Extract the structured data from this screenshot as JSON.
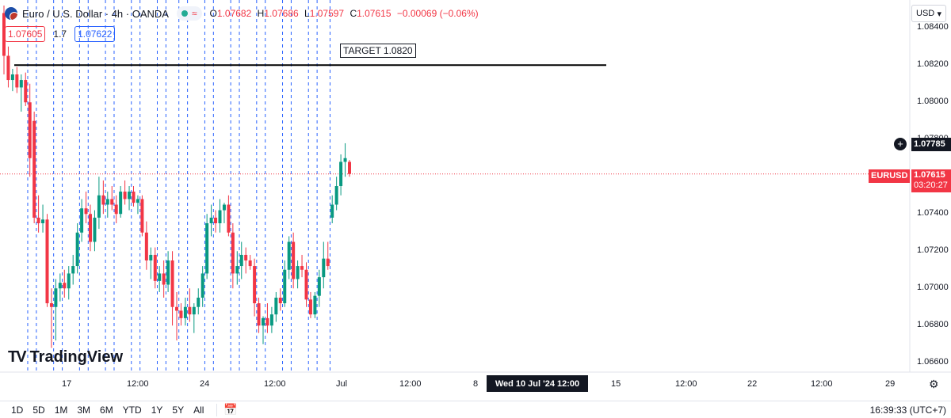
{
  "header": {
    "symbol": "Euro / U.S. Dollar · 4h · OANDA",
    "ohlc": [
      {
        "k": "O",
        "v": "1.07682"
      },
      {
        "k": "H",
        "v": "1.07686"
      },
      {
        "k": "L",
        "v": "1.07597"
      },
      {
        "k": "C",
        "v": "1.07615"
      }
    ],
    "change": "−0.00069 (−0.06%)",
    "pill_icon": "wave-icon"
  },
  "bidask": {
    "bid": "1.07605",
    "spread": "1.7",
    "ask": "1.07622"
  },
  "target_label": "TARGET 1.0820",
  "logo_text": "TradingView",
  "currency_button": "USD",
  "price_axis": {
    "ticks": [
      "1.08400",
      "1.08200",
      "1.08000",
      "1.07800",
      "1.07600",
      "1.07400",
      "1.07200",
      "1.07000",
      "1.06800",
      "1.06600"
    ],
    "crosshair_price": "1.07785",
    "last_price": "1.07615",
    "countdown": "03:20:27",
    "symbol_tag": "EURUSD"
  },
  "time_axis": {
    "labels": [
      "17",
      "12:00",
      "24",
      "12:00",
      "Jul",
      "12:00",
      "8",
      "15",
      "12:00",
      "22",
      "12:00",
      "29"
    ],
    "crosshair_date": "Wed 10 Jul '24   12:00"
  },
  "timeframes": [
    "1D",
    "5D",
    "1M",
    "3M",
    "6M",
    "YTD",
    "1Y",
    "5Y",
    "All"
  ],
  "clock": "16:39:33 (UTC+7)",
  "colors": {
    "up": "#089981",
    "down": "#f23645",
    "vline": "#2962ff",
    "target": "#000000"
  },
  "chart_data": {
    "type": "candlestick",
    "target_line": 1.082,
    "last_price": 1.07615,
    "ylim": [
      1.0655,
      1.0855
    ],
    "candles": [
      {
        "o": 1.0848,
        "h": 1.0852,
        "l": 1.0815,
        "c": 1.0825
      },
      {
        "o": 1.0825,
        "h": 1.083,
        "l": 1.0808,
        "c": 1.0812
      },
      {
        "o": 1.0812,
        "h": 1.0818,
        "l": 1.0806,
        "c": 1.0815
      },
      {
        "o": 1.0815,
        "h": 1.0819,
        "l": 1.0805,
        "c": 1.0808
      },
      {
        "o": 1.0808,
        "h": 1.0815,
        "l": 1.0795,
        "c": 1.0812
      },
      {
        "o": 1.0812,
        "h": 1.0816,
        "l": 1.0798,
        "c": 1.08
      },
      {
        "o": 1.08,
        "h": 1.081,
        "l": 1.076,
        "c": 1.077
      },
      {
        "o": 1.079,
        "h": 1.0795,
        "l": 1.0735,
        "c": 1.0738
      },
      {
        "o": 1.0738,
        "h": 1.075,
        "l": 1.073,
        "c": 1.0735
      },
      {
        "o": 1.0735,
        "h": 1.0745,
        "l": 1.073,
        "c": 1.0737
      },
      {
        "o": 1.0737,
        "h": 1.074,
        "l": 1.069,
        "c": 1.0692
      },
      {
        "o": 1.0692,
        "h": 1.07,
        "l": 1.0668,
        "c": 1.069
      },
      {
        "o": 1.069,
        "h": 1.0705,
        "l": 1.0672,
        "c": 1.07
      },
      {
        "o": 1.07,
        "h": 1.0708,
        "l": 1.0693,
        "c": 1.0703
      },
      {
        "o": 1.0703,
        "h": 1.071,
        "l": 1.0695,
        "c": 1.07
      },
      {
        "o": 1.07,
        "h": 1.0712,
        "l": 1.0694,
        "c": 1.0708
      },
      {
        "o": 1.0708,
        "h": 1.0718,
        "l": 1.0702,
        "c": 1.0712
      },
      {
        "o": 1.0712,
        "h": 1.0735,
        "l": 1.0708,
        "c": 1.073
      },
      {
        "o": 1.073,
        "h": 1.0748,
        "l": 1.0725,
        "c": 1.0743
      },
      {
        "o": 1.0743,
        "h": 1.0752,
        "l": 1.0735,
        "c": 1.074
      },
      {
        "o": 1.074,
        "h": 1.0745,
        "l": 1.072,
        "c": 1.0725
      },
      {
        "o": 1.0725,
        "h": 1.0742,
        "l": 1.072,
        "c": 1.0738
      },
      {
        "o": 1.0738,
        "h": 1.076,
        "l": 1.0732,
        "c": 1.075
      },
      {
        "o": 1.075,
        "h": 1.0758,
        "l": 1.074,
        "c": 1.0745
      },
      {
        "o": 1.0745,
        "h": 1.0752,
        "l": 1.0738,
        "c": 1.0748
      },
      {
        "o": 1.0748,
        "h": 1.0755,
        "l": 1.0742,
        "c": 1.0745
      },
      {
        "o": 1.0745,
        "h": 1.075,
        "l": 1.0735,
        "c": 1.074
      },
      {
        "o": 1.074,
        "h": 1.0755,
        "l": 1.0738,
        "c": 1.0752
      },
      {
        "o": 1.0752,
        "h": 1.0758,
        "l": 1.0745,
        "c": 1.0748
      },
      {
        "o": 1.0748,
        "h": 1.0755,
        "l": 1.0742,
        "c": 1.0752
      },
      {
        "o": 1.0752,
        "h": 1.0755,
        "l": 1.0744,
        "c": 1.0746
      },
      {
        "o": 1.0746,
        "h": 1.075,
        "l": 1.074,
        "c": 1.0748
      },
      {
        "o": 1.0748,
        "h": 1.075,
        "l": 1.0728,
        "c": 1.073
      },
      {
        "o": 1.073,
        "h": 1.0736,
        "l": 1.071,
        "c": 1.0715
      },
      {
        "o": 1.0715,
        "h": 1.0722,
        "l": 1.0705,
        "c": 1.0718
      },
      {
        "o": 1.0718,
        "h": 1.0722,
        "l": 1.07,
        "c": 1.0704
      },
      {
        "o": 1.0704,
        "h": 1.0712,
        "l": 1.0698,
        "c": 1.0708
      },
      {
        "o": 1.0708,
        "h": 1.0715,
        "l": 1.0695,
        "c": 1.0702
      },
      {
        "o": 1.0702,
        "h": 1.072,
        "l": 1.0698,
        "c": 1.0715
      },
      {
        "o": 1.0715,
        "h": 1.072,
        "l": 1.068,
        "c": 1.069
      },
      {
        "o": 1.069,
        "h": 1.0698,
        "l": 1.0672,
        "c": 1.0688
      },
      {
        "o": 1.0688,
        "h": 1.0692,
        "l": 1.068,
        "c": 1.0684
      },
      {
        "o": 1.0684,
        "h": 1.0695,
        "l": 1.068,
        "c": 1.069
      },
      {
        "o": 1.069,
        "h": 1.07,
        "l": 1.0682,
        "c": 1.0686
      },
      {
        "o": 1.0686,
        "h": 1.0692,
        "l": 1.0676,
        "c": 1.069
      },
      {
        "o": 1.069,
        "h": 1.07,
        "l": 1.0686,
        "c": 1.0695
      },
      {
        "o": 1.0695,
        "h": 1.0712,
        "l": 1.069,
        "c": 1.0708
      },
      {
        "o": 1.0708,
        "h": 1.074,
        "l": 1.0705,
        "c": 1.0735
      },
      {
        "o": 1.0735,
        "h": 1.0745,
        "l": 1.0728,
        "c": 1.0738
      },
      {
        "o": 1.0738,
        "h": 1.0742,
        "l": 1.073,
        "c": 1.0735
      },
      {
        "o": 1.0735,
        "h": 1.0748,
        "l": 1.073,
        "c": 1.0742
      },
      {
        "o": 1.0742,
        "h": 1.0746,
        "l": 1.0735,
        "c": 1.0745
      },
      {
        "o": 1.0745,
        "h": 1.075,
        "l": 1.0728,
        "c": 1.073
      },
      {
        "o": 1.073,
        "h": 1.0735,
        "l": 1.07,
        "c": 1.0708
      },
      {
        "o": 1.0708,
        "h": 1.072,
        "l": 1.0702,
        "c": 1.0712
      },
      {
        "o": 1.0712,
        "h": 1.0725,
        "l": 1.0705,
        "c": 1.0718
      },
      {
        "o": 1.0718,
        "h": 1.0722,
        "l": 1.0708,
        "c": 1.0715
      },
      {
        "o": 1.0715,
        "h": 1.0718,
        "l": 1.071,
        "c": 1.0712
      },
      {
        "o": 1.0712,
        "h": 1.0716,
        "l": 1.0685,
        "c": 1.0692
      },
      {
        "o": 1.0692,
        "h": 1.0695,
        "l": 1.0676,
        "c": 1.068
      },
      {
        "o": 1.068,
        "h": 1.0685,
        "l": 1.067,
        "c": 1.0684
      },
      {
        "o": 1.0684,
        "h": 1.0692,
        "l": 1.0676,
        "c": 1.068
      },
      {
        "o": 1.068,
        "h": 1.069,
        "l": 1.0676,
        "c": 1.0686
      },
      {
        "o": 1.0686,
        "h": 1.0698,
        "l": 1.0682,
        "c": 1.0695
      },
      {
        "o": 1.0695,
        "h": 1.07,
        "l": 1.0688,
        "c": 1.0692
      },
      {
        "o": 1.0692,
        "h": 1.0715,
        "l": 1.069,
        "c": 1.071
      },
      {
        "o": 1.071,
        "h": 1.0728,
        "l": 1.0705,
        "c": 1.0725
      },
      {
        "o": 1.0725,
        "h": 1.073,
        "l": 1.07,
        "c": 1.0705
      },
      {
        "o": 1.0705,
        "h": 1.0715,
        "l": 1.07,
        "c": 1.0712
      },
      {
        "o": 1.0712,
        "h": 1.0718,
        "l": 1.0706,
        "c": 1.071
      },
      {
        "o": 1.071,
        "h": 1.0714,
        "l": 1.069,
        "c": 1.0694
      },
      {
        "o": 1.0694,
        "h": 1.0698,
        "l": 1.0684,
        "c": 1.0686
      },
      {
        "o": 1.0686,
        "h": 1.0698,
        "l": 1.0684,
        "c": 1.0696
      },
      {
        "o": 1.0696,
        "h": 1.071,
        "l": 1.069,
        "c": 1.0706
      },
      {
        "o": 1.0706,
        "h": 1.0725,
        "l": 1.07,
        "c": 1.0716
      },
      {
        "o": 1.0716,
        "h": 1.0725,
        "l": 1.071,
        "c": 1.0712
      },
      {
        "o": 1.0738,
        "h": 1.075,
        "l": 1.0735,
        "c": 1.0745
      },
      {
        "o": 1.0745,
        "h": 1.076,
        "l": 1.0742,
        "c": 1.0755
      },
      {
        "o": 1.0755,
        "h": 1.0772,
        "l": 1.075,
        "c": 1.0768
      },
      {
        "o": 1.0768,
        "h": 1.0778,
        "l": 1.076,
        "c": 1.077
      },
      {
        "o": 1.0768,
        "h": 1.0769,
        "l": 1.076,
        "c": 1.07615
      }
    ],
    "vlines": [
      6,
      8,
      12,
      14,
      18,
      20,
      24,
      26,
      30,
      32,
      36,
      38,
      41,
      43,
      47,
      49,
      53,
      55,
      59,
      61,
      65,
      67,
      71,
      73,
      76
    ]
  }
}
